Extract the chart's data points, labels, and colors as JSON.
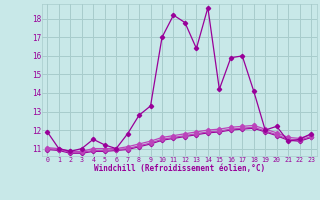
{
  "xlabel": "Windchill (Refroidissement éolien,°C)",
  "background_color": "#c8e8e8",
  "grid_color": "#a8cccc",
  "line_color": "#990099",
  "line_color2": "#bb44bb",
  "xlim": [
    -0.5,
    23.5
  ],
  "ylim": [
    10.6,
    18.8
  ],
  "xticks": [
    0,
    1,
    2,
    3,
    4,
    5,
    6,
    7,
    8,
    9,
    10,
    11,
    12,
    13,
    14,
    15,
    16,
    17,
    18,
    19,
    20,
    21,
    22,
    23
  ],
  "yticks": [
    11,
    12,
    13,
    14,
    15,
    16,
    17,
    18
  ],
  "series1_x": [
    0,
    1,
    2,
    3,
    4,
    5,
    6,
    7,
    8,
    9,
    10,
    11,
    12,
    13,
    14,
    15,
    16,
    17,
    18,
    19,
    20,
    21,
    22,
    23
  ],
  "series1_y": [
    11.9,
    11.0,
    10.85,
    11.0,
    11.5,
    11.2,
    11.0,
    11.8,
    12.8,
    13.3,
    17.0,
    18.2,
    17.8,
    16.4,
    18.6,
    14.2,
    15.9,
    16.0,
    14.1,
    12.0,
    12.2,
    11.4,
    11.5,
    11.8
  ],
  "series2_x": [
    0,
    1,
    2,
    3,
    4,
    5,
    6,
    7,
    8,
    9,
    10,
    11,
    12,
    13,
    14,
    15,
    16,
    17,
    18,
    19,
    20,
    21,
    22,
    23
  ],
  "series2_y": [
    11.05,
    11.0,
    10.85,
    10.85,
    11.0,
    11.0,
    11.0,
    11.1,
    11.25,
    11.4,
    11.6,
    11.7,
    11.8,
    11.9,
    12.0,
    12.05,
    12.15,
    12.2,
    12.25,
    12.05,
    11.85,
    11.6,
    11.55,
    11.75
  ],
  "series3_x": [
    0,
    1,
    2,
    3,
    4,
    5,
    6,
    7,
    8,
    9,
    10,
    11,
    12,
    13,
    14,
    15,
    16,
    17,
    18,
    19,
    20,
    21,
    22,
    23
  ],
  "series3_y": [
    11.0,
    10.95,
    10.8,
    10.8,
    10.9,
    10.9,
    10.95,
    11.0,
    11.15,
    11.3,
    11.5,
    11.6,
    11.7,
    11.8,
    11.9,
    11.95,
    12.05,
    12.1,
    12.15,
    11.95,
    11.75,
    11.5,
    11.45,
    11.65
  ],
  "series4_x": [
    0,
    1,
    2,
    3,
    4,
    5,
    6,
    7,
    8,
    9,
    10,
    11,
    12,
    13,
    14,
    15,
    16,
    17,
    18,
    19,
    20,
    21,
    22,
    23
  ],
  "series4_y": [
    10.95,
    10.9,
    10.75,
    10.75,
    10.85,
    10.85,
    10.9,
    10.95,
    11.1,
    11.25,
    11.45,
    11.55,
    11.65,
    11.75,
    11.85,
    11.9,
    12.0,
    12.05,
    12.1,
    11.9,
    11.7,
    11.45,
    11.4,
    11.6
  ]
}
